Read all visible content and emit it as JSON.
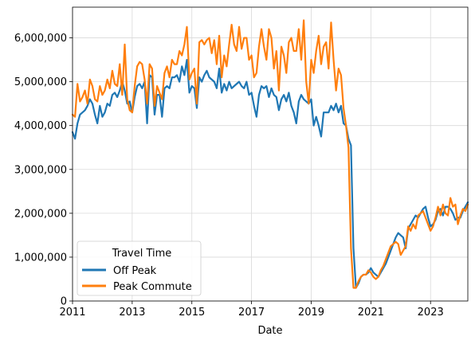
{
  "chart_data": {
    "type": "line",
    "xlabel": "Date",
    "ylabel": "",
    "x_range": [
      "2011-01",
      "2024-04"
    ],
    "ylim": [
      0,
      6700000
    ],
    "grid": true,
    "legend": {
      "title": "Travel Time",
      "placement": "lower-left"
    },
    "x_ticks": [
      "2011",
      "2013",
      "2015",
      "2017",
      "2019",
      "2021",
      "2023"
    ],
    "y_ticks": [
      "0",
      "1,000,000",
      "2,000,000",
      "3,000,000",
      "4,000,000",
      "5,000,000",
      "6,000,000"
    ],
    "colors": {
      "Off Peak": "#1f77b4",
      "Peak Commute": "#ff7f0e"
    },
    "series": [
      {
        "name": "Off Peak",
        "x": [
          "2011-01",
          "2011-02",
          "2011-03",
          "2011-04",
          "2011-05",
          "2011-06",
          "2011-07",
          "2011-08",
          "2011-09",
          "2011-10",
          "2011-11",
          "2011-12",
          "2012-01",
          "2012-02",
          "2012-03",
          "2012-04",
          "2012-05",
          "2012-06",
          "2012-07",
          "2012-08",
          "2012-09",
          "2012-10",
          "2012-11",
          "2012-12",
          "2013-01",
          "2013-02",
          "2013-03",
          "2013-04",
          "2013-05",
          "2013-06",
          "2013-07",
          "2013-08",
          "2013-09",
          "2013-10",
          "2013-11",
          "2013-12",
          "2014-01",
          "2014-02",
          "2014-03",
          "2014-04",
          "2014-05",
          "2014-06",
          "2014-07",
          "2014-08",
          "2014-09",
          "2014-10",
          "2014-11",
          "2014-12",
          "2015-01",
          "2015-02",
          "2015-03",
          "2015-04",
          "2015-05",
          "2015-06",
          "2015-07",
          "2015-08",
          "2015-09",
          "2015-10",
          "2015-11",
          "2015-12",
          "2016-01",
          "2016-02",
          "2016-03",
          "2016-04",
          "2016-05",
          "2016-06",
          "2016-07",
          "2016-08",
          "2016-09",
          "2016-10",
          "2016-11",
          "2016-12",
          "2017-01",
          "2017-02",
          "2017-03",
          "2017-04",
          "2017-05",
          "2017-06",
          "2017-07",
          "2017-08",
          "2017-09",
          "2017-10",
          "2017-11",
          "2017-12",
          "2018-01",
          "2018-02",
          "2018-03",
          "2018-04",
          "2018-05",
          "2018-06",
          "2018-07",
          "2018-08",
          "2018-09",
          "2018-10",
          "2018-11",
          "2018-12",
          "2019-01",
          "2019-02",
          "2019-03",
          "2019-04",
          "2019-05",
          "2019-06",
          "2019-07",
          "2019-08",
          "2019-09",
          "2019-10",
          "2019-11",
          "2019-12",
          "2020-01",
          "2020-02",
          "2020-03",
          "2020-04",
          "2020-05",
          "2020-06",
          "2020-07",
          "2020-08",
          "2020-09",
          "2020-10",
          "2020-11",
          "2020-12",
          "2021-01",
          "2021-02",
          "2021-03",
          "2021-04",
          "2021-05",
          "2021-06",
          "2021-07",
          "2021-08",
          "2021-09",
          "2021-10",
          "2021-11",
          "2021-12",
          "2022-01",
          "2022-02",
          "2022-03",
          "2022-04",
          "2022-05",
          "2022-06",
          "2022-07",
          "2022-08",
          "2022-09",
          "2022-10",
          "2022-11",
          "2022-12",
          "2023-01",
          "2023-02",
          "2023-03",
          "2023-04",
          "2023-05",
          "2023-06",
          "2023-07",
          "2023-08",
          "2023-09",
          "2023-10",
          "2023-11",
          "2023-12",
          "2024-01",
          "2024-02",
          "2024-03",
          "2024-04"
        ],
        "values": [
          3850000,
          3700000,
          4050000,
          4250000,
          4300000,
          4350000,
          4450000,
          4600000,
          4500000,
          4250000,
          4050000,
          4450000,
          4200000,
          4300000,
          4500000,
          4450000,
          4700000,
          4750000,
          4650000,
          4800000,
          5000000,
          4800000,
          4500000,
          4550000,
          4300000,
          4650000,
          4900000,
          4950000,
          4850000,
          5000000,
          4050000,
          5150000,
          5100000,
          4250000,
          4700000,
          4700000,
          4200000,
          4850000,
          4900000,
          4850000,
          5100000,
          5100000,
          5150000,
          5000000,
          5350000,
          5150000,
          5500000,
          4750000,
          4900000,
          4850000,
          4400000,
          5100000,
          5000000,
          5150000,
          5250000,
          5100000,
          5050000,
          5000000,
          4850000,
          5300000,
          4750000,
          4950000,
          4800000,
          5000000,
          4850000,
          4900000,
          4950000,
          5000000,
          4900000,
          4850000,
          5000000,
          4700000,
          4750000,
          4450000,
          4200000,
          4700000,
          4900000,
          4850000,
          4900000,
          4650000,
          4850000,
          4700000,
          4650000,
          4350000,
          4600000,
          4700000,
          4550000,
          4750000,
          4450000,
          4300000,
          4050000,
          4550000,
          4700000,
          4600000,
          4550000,
          4500000,
          4600000,
          4000000,
          4200000,
          4000000,
          3750000,
          4300000,
          4300000,
          4300000,
          4450000,
          4350000,
          4500000,
          4300000,
          4450000,
          4050000,
          4000000,
          3700000,
          3550000,
          1200000,
          300000,
          400000,
          550000,
          600000,
          600000,
          650000,
          750000,
          650000,
          600000,
          550000,
          650000,
          750000,
          850000,
          1000000,
          1150000,
          1300000,
          1450000,
          1550000,
          1500000,
          1450000,
          1200000,
          1650000,
          1750000,
          1850000,
          1950000,
          1900000,
          2000000,
          2100000,
          2150000,
          1900000,
          1700000,
          1750000,
          1850000,
          2050000,
          2100000,
          1950000,
          2150000,
          2150000,
          2100000,
          2000000,
          1850000,
          1900000,
          1900000,
          2050000,
          2150000,
          2250000
        ]
      },
      {
        "name": "Peak Commute",
        "x": [
          "2011-01",
          "2011-02",
          "2011-03",
          "2011-04",
          "2011-05",
          "2011-06",
          "2011-07",
          "2011-08",
          "2011-09",
          "2011-10",
          "2011-11",
          "2011-12",
          "2012-01",
          "2012-02",
          "2012-03",
          "2012-04",
          "2012-05",
          "2012-06",
          "2012-07",
          "2012-08",
          "2012-09",
          "2012-10",
          "2012-11",
          "2012-12",
          "2013-01",
          "2013-02",
          "2013-03",
          "2013-04",
          "2013-05",
          "2013-06",
          "2013-07",
          "2013-08",
          "2013-09",
          "2013-10",
          "2013-11",
          "2013-12",
          "2014-01",
          "2014-02",
          "2014-03",
          "2014-04",
          "2014-05",
          "2014-06",
          "2014-07",
          "2014-08",
          "2014-09",
          "2014-10",
          "2014-11",
          "2014-12",
          "2015-01",
          "2015-02",
          "2015-03",
          "2015-04",
          "2015-05",
          "2015-06",
          "2015-07",
          "2015-08",
          "2015-09",
          "2015-10",
          "2015-11",
          "2015-12",
          "2016-01",
          "2016-02",
          "2016-03",
          "2016-04",
          "2016-05",
          "2016-06",
          "2016-07",
          "2016-08",
          "2016-09",
          "2016-10",
          "2016-11",
          "2016-12",
          "2017-01",
          "2017-02",
          "2017-03",
          "2017-04",
          "2017-05",
          "2017-06",
          "2017-07",
          "2017-08",
          "2017-09",
          "2017-10",
          "2017-11",
          "2017-12",
          "2018-01",
          "2018-02",
          "2018-03",
          "2018-04",
          "2018-05",
          "2018-06",
          "2018-07",
          "2018-08",
          "2018-09",
          "2018-10",
          "2018-11",
          "2018-12",
          "2019-01",
          "2019-02",
          "2019-03",
          "2019-04",
          "2019-05",
          "2019-06",
          "2019-07",
          "2019-08",
          "2019-09",
          "2019-10",
          "2019-11",
          "2019-12",
          "2020-01",
          "2020-02",
          "2020-03",
          "2020-04",
          "2020-05",
          "2020-06",
          "2020-07",
          "2020-08",
          "2020-09",
          "2020-10",
          "2020-11",
          "2020-12",
          "2021-01",
          "2021-02",
          "2021-03",
          "2021-04",
          "2021-05",
          "2021-06",
          "2021-07",
          "2021-08",
          "2021-09",
          "2021-10",
          "2021-11",
          "2021-12",
          "2022-01",
          "2022-02",
          "2022-03",
          "2022-04",
          "2022-05",
          "2022-06",
          "2022-07",
          "2022-08",
          "2022-09",
          "2022-10",
          "2022-11",
          "2022-12",
          "2023-01",
          "2023-02",
          "2023-03",
          "2023-04",
          "2023-05",
          "2023-06",
          "2023-07",
          "2023-08",
          "2023-09",
          "2023-10",
          "2023-11",
          "2023-12",
          "2024-01",
          "2024-02",
          "2024-03",
          "2024-04"
        ],
        "values": [
          4250000,
          4200000,
          4950000,
          4550000,
          4650000,
          4800000,
          4500000,
          5050000,
          4900000,
          4600000,
          4550000,
          4900000,
          4700000,
          4800000,
          5050000,
          4850000,
          5250000,
          4950000,
          4900000,
          5400000,
          4700000,
          5850000,
          4600000,
          4350000,
          4300000,
          4900000,
          5350000,
          5450000,
          5400000,
          5050000,
          4500000,
          5400000,
          5300000,
          4450000,
          4900000,
          4750000,
          4600000,
          5200000,
          5350000,
          5100000,
          5500000,
          5400000,
          5400000,
          5700000,
          5600000,
          5850000,
          6250000,
          5050000,
          5200000,
          5300000,
          4500000,
          5900000,
          5950000,
          5850000,
          5950000,
          6000000,
          5650000,
          5950000,
          5400000,
          6050000,
          5100000,
          5600000,
          5350000,
          5850000,
          6300000,
          5850000,
          5700000,
          6250000,
          5750000,
          6000000,
          6000000,
          5500000,
          5600000,
          5100000,
          5200000,
          5800000,
          6200000,
          5800000,
          5500000,
          6200000,
          6000000,
          5300000,
          5700000,
          4800000,
          5800000,
          5600000,
          5200000,
          5900000,
          6000000,
          5700000,
          5700000,
          6200000,
          5500000,
          6400000,
          5000000,
          4500000,
          5500000,
          5200000,
          5700000,
          6050000,
          5400000,
          5800000,
          5900000,
          5300000,
          6350000,
          5500000,
          4800000,
          5300000,
          5150000,
          4400000,
          4000000,
          3500000,
          1200000,
          300000,
          300000,
          450000,
          550000,
          600000,
          600000,
          700000,
          650000,
          550000,
          500000,
          550000,
          700000,
          800000,
          950000,
          1100000,
          1250000,
          1300000,
          1350000,
          1300000,
          1050000,
          1150000,
          1250000,
          1700000,
          1600000,
          1750000,
          1650000,
          1950000,
          2000000,
          2050000,
          1900000,
          1750000,
          1600000,
          1700000,
          1900000,
          2150000,
          1950000,
          2200000,
          2000000,
          1950000,
          2350000,
          2150000,
          2200000,
          1750000,
          1950000,
          2100000,
          2050000,
          2200000
        ]
      }
    ]
  }
}
